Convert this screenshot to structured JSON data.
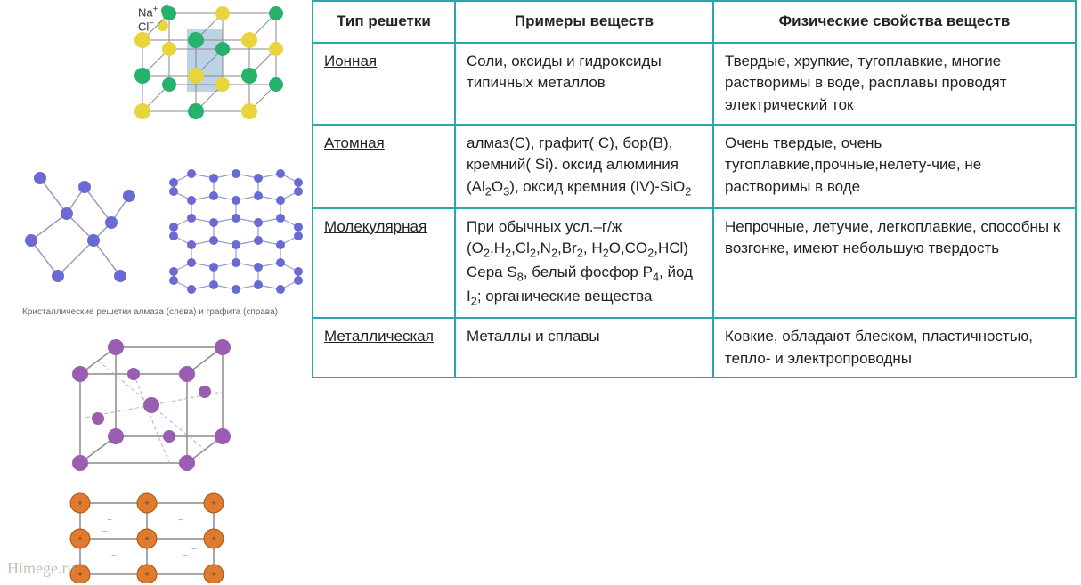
{
  "table": {
    "headers": {
      "c1": "Тип решетки",
      "c2": "Примеры веществ",
      "c3": "Физические свойства веществ"
    },
    "rows": {
      "ionic": {
        "type": "Ионная",
        "examples": "Соли, оксиды и гидроксиды типичных металлов",
        "properties": "Твердые, хрупкие, тугоплавкие, многие растворимы в воде, расплавы проводят электрический ток"
      },
      "atomic": {
        "type": "Атомная",
        "examples_html": "алмаз(С), графит( С), бор(В), кремний( Si). оксид алюминия (Al<sub class='sub'>2</sub>O<sub class='sub'>3</sub>), оксид кремния (IV)-SiO<sub class='sub'>2</sub>",
        "properties": "Очень твердые, очень тугоплавкие,прочные,нелету-чие, не растворимы в воде"
      },
      "molecular": {
        "type": "Молекулярная",
        "examples_html": "При обычных усл.–г/ж (O<sub class='sub'>2</sub>,H<sub class='sub'>2</sub>,Cl<sub class='sub'>2</sub>,N<sub class='sub'>2</sub>,Br<sub class='sub'>2</sub>, H<sub class='sub'>2</sub>O,CO<sub class='sub'>2</sub>,HCl) Сера S<sub class='sub'>8</sub>, белый фосфор P<sub class='sub'>4</sub>, йод I<sub class='sub'>2</sub>; органические вещества",
        "properties": "Непрочные, летучие, легкоплавкие, способны к возгонке, имеют небольшую твердость"
      },
      "metallic": {
        "type": "Металлическая",
        "examples": "Металлы и сплавы",
        "properties": "Ковкие, обладают блеском, пластичностью, тепло- и электропроводны"
      }
    }
  },
  "diagrams": {
    "ionic": {
      "na_label": "Na",
      "cl_label": "Cl",
      "na_color": "#26b26a",
      "cl_color": "#e9d53b",
      "edge_color": "#8a8a8a",
      "inner_fill": "#8fb6d4"
    },
    "atomic": {
      "atom_color": "#6a6ad4",
      "edge_color": "#9a9ac0",
      "caption": "Кристаллические решетки алмаза (слева) и графита (справа)"
    },
    "molecular": {
      "atom_color": "#9a5db0",
      "edge_color": "#8a8a8a",
      "dashed_color": "#c4a6cc"
    },
    "metallic": {
      "ion_color": "#e07a2c",
      "edge_color": "#8a8a8a",
      "electron_color": "#999"
    }
  },
  "watermark": "Himege.ru"
}
